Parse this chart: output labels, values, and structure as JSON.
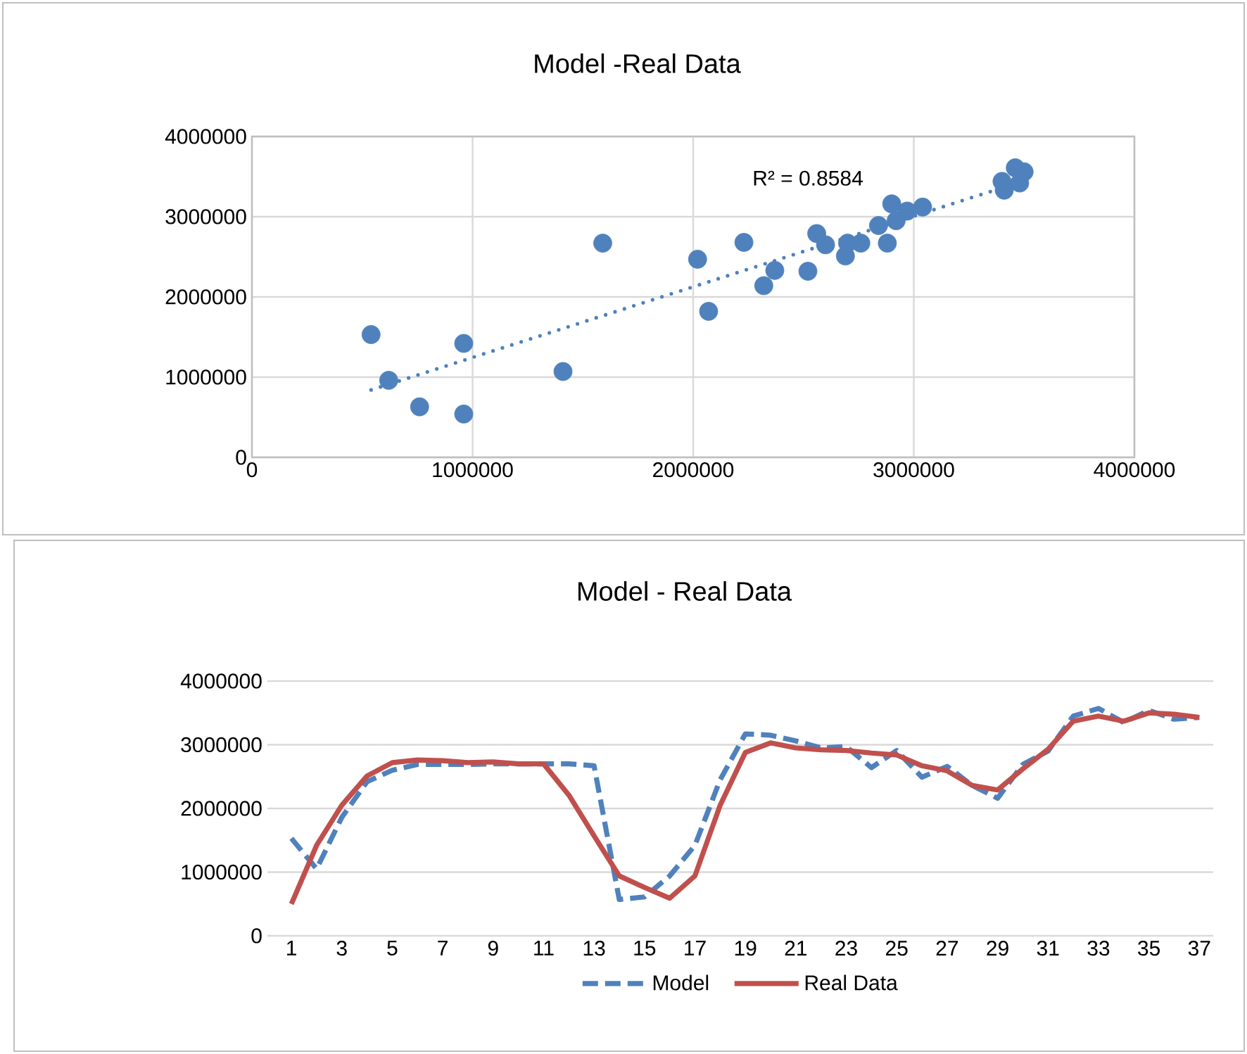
{
  "chart_data": [
    {
      "type": "scatter",
      "title": "Model -Real Data",
      "series": [
        {
          "type": "scatter",
          "color": "#4f81bd",
          "marker": "circle",
          "x": [
            540000,
            620000,
            760000,
            960000,
            960000,
            1410000,
            1590000,
            2020000,
            2070000,
            2230000,
            2320000,
            2370000,
            2520000,
            2560000,
            2600000,
            2690000,
            2700000,
            2760000,
            2840000,
            2880000,
            2900000,
            2920000,
            2970000,
            3040000,
            3400000,
            3410000,
            3460000,
            3500000,
            3480000
          ],
          "values": [
            1530000,
            960000,
            630000,
            540000,
            1420000,
            1070000,
            2670000,
            2470000,
            1820000,
            2680000,
            2140000,
            2330000,
            2320000,
            2790000,
            2650000,
            2510000,
            2670000,
            2670000,
            2890000,
            2670000,
            3160000,
            2950000,
            3070000,
            3120000,
            3440000,
            3330000,
            3610000,
            3560000,
            3420000
          ]
        },
        {
          "type": "line",
          "color": "#4f81bd",
          "marker": "none",
          "line_style": "dotted",
          "x": [
            540000,
            3400000
          ],
          "values": [
            840000,
            3360000
          ]
        }
      ],
      "xlim": [
        0,
        4000000
      ],
      "ylim": [
        0,
        4000000
      ],
      "xticks": [
        0,
        1000000,
        2000000,
        3000000,
        4000000
      ],
      "yticks": [
        0,
        1000000,
        2000000,
        3000000,
        4000000
      ],
      "grid": true,
      "annotations": [
        "R² = 0.8584"
      ]
    },
    {
      "type": "line",
      "title": "Model - Real Data",
      "categories": [
        "1",
        null,
        "3",
        null,
        "5",
        null,
        "7",
        null,
        "9",
        null,
        "11",
        null,
        "13",
        null,
        "15",
        null,
        "17",
        null,
        "19",
        null,
        "21",
        null,
        "23",
        null,
        "25",
        null,
        "27",
        null,
        "29",
        null,
        "31",
        null,
        "33",
        null,
        "35",
        null,
        "37"
      ],
      "series": [
        {
          "name": "Model",
          "color": "#4f81bd",
          "line_style": "dashed",
          "values": [
            1530000,
            1050000,
            1860000,
            2420000,
            2600000,
            2690000,
            2690000,
            2690000,
            2700000,
            2700000,
            2700000,
            2700000,
            2670000,
            570000,
            610000,
            940000,
            1420000,
            2450000,
            3170000,
            3150000,
            3060000,
            2950000,
            2970000,
            2640000,
            2910000,
            2490000,
            2660000,
            2360000,
            2160000,
            2690000,
            2900000,
            3450000,
            3570000,
            3350000,
            3540000,
            3400000,
            3430000
          ]
        },
        {
          "name": "Real Data",
          "color": "#c0504d",
          "line_style": "solid",
          "values": [
            500000,
            1420000,
            2050000,
            2510000,
            2720000,
            2760000,
            2750000,
            2720000,
            2730000,
            2700000,
            2700000,
            2210000,
            1570000,
            940000,
            760000,
            590000,
            940000,
            2050000,
            2880000,
            3030000,
            2950000,
            2920000,
            2910000,
            2870000,
            2840000,
            2670000,
            2590000,
            2360000,
            2290000,
            2620000,
            2930000,
            3370000,
            3450000,
            3370000,
            3500000,
            3480000,
            3430000
          ]
        }
      ],
      "ylim": [
        0,
        4000000
      ],
      "yticks": [
        0,
        1000000,
        2000000,
        3000000,
        4000000
      ],
      "grid": "y",
      "legend": "bottom",
      "marker": "none"
    }
  ]
}
